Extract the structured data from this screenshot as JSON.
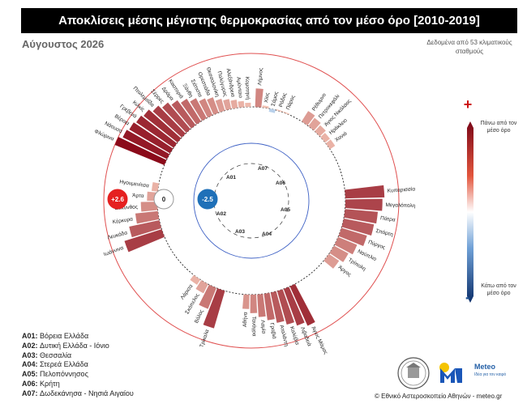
{
  "title": "Αποκλίσεις μέσης μέγιστης θερμοκρασίας από τον μέσο όρο [2010-2019]",
  "month": "Αύγουστος 2026",
  "source_note": "Δεδομένα από 53 κλιματικούς σταθμούς",
  "legend": {
    "plus": "+",
    "minus": "-",
    "top": "Πάνω από τον μέσο όρο",
    "bottom": "Κάτω από τον μέσο όρο"
  },
  "circle_badges": {
    "outer": "+2.6",
    "middle": "0",
    "inner": "-2.5"
  },
  "region_codes": [
    "A01",
    "A02",
    "A03",
    "A04",
    "A05",
    "A06",
    "A07"
  ],
  "regions": [
    {
      "code": "A01:",
      "name": "Βόρεια Ελλάδα"
    },
    {
      "code": "A02:",
      "name": "Δυτική Ελλάδα - Ιόνιο"
    },
    {
      "code": "A03:",
      "name": "Θεσσαλία"
    },
    {
      "code": "A04:",
      "name": "Στερεά Ελλάδα"
    },
    {
      "code": "A05:",
      "name": "Πελοπόννησος"
    },
    {
      "code": "A06:",
      "name": "Κρήτη"
    },
    {
      "code": "A07:",
      "name": "Δωδεκάνησα - Νησιά Αιγαίου"
    }
  ],
  "copyright": "© Εθνικό Αστεροσκοπείο Αθηνών - meteo.gr",
  "meteo_logo": {
    "name": "Meteo",
    "tagline": "Ιδέα για τον καιρό"
  },
  "colors": {
    "warm_dark": "#8b0a1a",
    "warm_light": "#f6c8b8",
    "cold": "#4a7fc1",
    "title_bg": "#000000"
  },
  "chart_data": {
    "type": "radial-bar",
    "unit": "°C",
    "rlim": [
      -2.5,
      2.6
    ],
    "stations": [
      {
        "name": "Λήμνος",
        "value": 0.9
      },
      {
        "name": "Χίος",
        "value": 0.1
      },
      {
        "name": "Σάμος",
        "value": -0.3
      },
      {
        "name": "Ρόδος",
        "value": 0.05
      },
      {
        "name": "Πάρος",
        "value": 0.05
      },
      {
        "name": "Ρέθυμνο",
        "value": 0.6
      },
      {
        "name": "Πετροκεφάλι",
        "value": 0.5
      },
      {
        "name": "Άγιος Νικόλαος",
        "value": 0.4
      },
      {
        "name": "Ηράκλειο",
        "value": 0.3
      },
      {
        "name": "Χανιά",
        "value": 0.3
      },
      {
        "name": "Κυπαρισσία",
        "value": 1.9
      },
      {
        "name": "Μεγαλόπολη",
        "value": 1.8
      },
      {
        "name": "Πάτρα",
        "value": 1.6
      },
      {
        "name": "Σπάρτη",
        "value": 1.5
      },
      {
        "name": "Πύργος",
        "value": 1.3
      },
      {
        "name": "Ναύπλιο",
        "value": 1.0
      },
      {
        "name": "Τρίπολη",
        "value": 0.8
      },
      {
        "name": "Άργος",
        "value": 0.6
      },
      {
        "name": "Άγιος Μάμας",
        "value": 2.1
      },
      {
        "name": "Λιβαδειά",
        "value": 1.9
      },
      {
        "name": "Καλύβια",
        "value": 1.7
      },
      {
        "name": "Αταλάντη",
        "value": 1.5
      },
      {
        "name": "Γραβιά",
        "value": 1.3
      },
      {
        "name": "Λαμία",
        "value": 1.1
      },
      {
        "name": "Τανάγρα",
        "value": 0.9
      },
      {
        "name": "Αθήνα",
        "value": 0.7
      },
      {
        "name": "Τρίκαλα",
        "value": 1.9
      },
      {
        "name": "Βόλος",
        "value": 1.1
      },
      {
        "name": "Σκόπελος",
        "value": 0.5
      },
      {
        "name": "Λάρισα",
        "value": 0.3
      },
      {
        "name": "Ιωάννινα",
        "value": 1.9
      },
      {
        "name": "Λευκάδα",
        "value": 1.5
      },
      {
        "name": "Κέρκυρα",
        "value": 1.1
      },
      {
        "name": "Ζάκυνθος",
        "value": 0.8
      },
      {
        "name": "Άρτα",
        "value": 0.5
      },
      {
        "name": "Ηγουμενίτσα",
        "value": 0.3
      },
      {
        "name": "Φλώρινα",
        "value": 2.6
      },
      {
        "name": "Νάουσα",
        "value": 2.4
      },
      {
        "name": "Βέροια",
        "value": 2.3
      },
      {
        "name": "Γρεβενά",
        "value": 2.2
      },
      {
        "name": "Κιλκίς",
        "value": 2.1
      },
      {
        "name": "Πτολεμαΐδα",
        "value": 1.9
      },
      {
        "name": "Σέρρες",
        "value": 1.7
      },
      {
        "name": "Δράμα",
        "value": 1.5
      },
      {
        "name": "Καστοριά",
        "value": 1.3
      },
      {
        "name": "Ξάνθη",
        "value": 1.1
      },
      {
        "name": "Σιάτιστα",
        "value": 0.9
      },
      {
        "name": "Ορεστιάδα",
        "value": 0.8
      },
      {
        "name": "Θεσσαλονίκη",
        "value": 0.6
      },
      {
        "name": "Πολύγυρος",
        "value": 0.5
      },
      {
        "name": "Αλεξάνδρεια",
        "value": 0.4
      },
      {
        "name": "Αμύνταιο",
        "value": 0.3
      },
      {
        "name": "Κομοτηνή",
        "value": 0.2
      }
    ]
  }
}
